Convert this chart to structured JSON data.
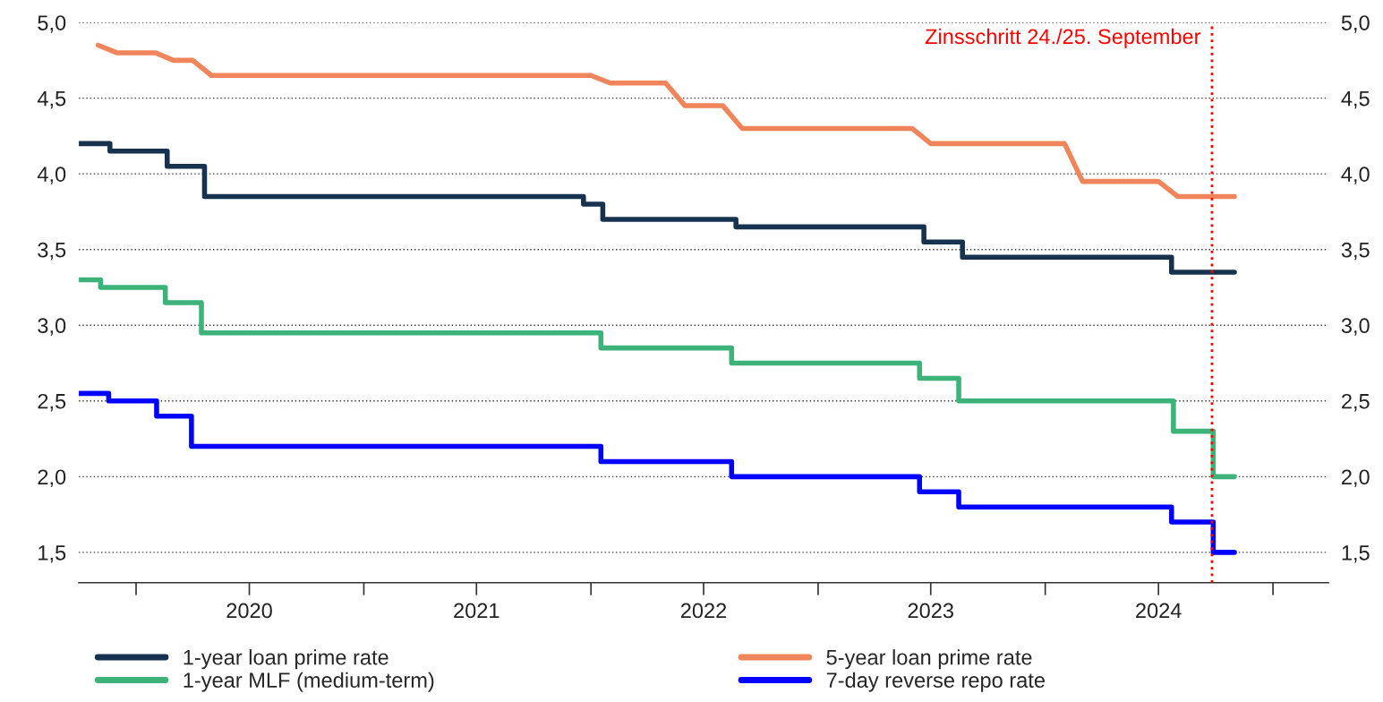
{
  "chart_data": {
    "type": "line",
    "xlim": [
      "2019-10-01",
      "2025-03-31"
    ],
    "xticks": [
      {
        "value": "2020-01-01",
        "label": null
      },
      {
        "value": "2020-07-01",
        "label": "2020"
      },
      {
        "value": "2021-01-01",
        "label": null
      },
      {
        "value": "2021-07-01",
        "label": "2021"
      },
      {
        "value": "2022-01-01",
        "label": null
      },
      {
        "value": "2022-07-01",
        "label": "2022"
      },
      {
        "value": "2023-01-01",
        "label": null
      },
      {
        "value": "2023-07-01",
        "label": "2023"
      },
      {
        "value": "2024-01-01",
        "label": null
      },
      {
        "value": "2024-07-01",
        "label": "2024"
      },
      {
        "value": "2025-01-01",
        "label": null
      }
    ],
    "ylim": [
      1.3,
      5.0
    ],
    "yticks": [
      {
        "value": 1.5,
        "label": "1,5"
      },
      {
        "value": 2.0,
        "label": "2,0"
      },
      {
        "value": 2.5,
        "label": "2,5"
      },
      {
        "value": 3.0,
        "label": "3,0"
      },
      {
        "value": 3.5,
        "label": "3,5"
      },
      {
        "value": 4.0,
        "label": "4,0"
      },
      {
        "value": 4.5,
        "label": "4,5"
      },
      {
        "value": 5.0,
        "label": "5,0"
      }
    ],
    "y2lim": [
      1.3,
      5.0
    ],
    "y2ticks": [
      {
        "value": 1.5,
        "label": "1,5"
      },
      {
        "value": 2.0,
        "label": "2,0"
      },
      {
        "value": 2.5,
        "label": "2,5"
      },
      {
        "value": 3.0,
        "label": "3,0"
      },
      {
        "value": 3.5,
        "label": "3,5"
      },
      {
        "value": 4.0,
        "label": "4,0"
      },
      {
        "value": 4.5,
        "label": "4,5"
      },
      {
        "value": 5.0,
        "label": "5,0"
      }
    ],
    "grid": "y",
    "legend": "bottom",
    "marker": "none",
    "line_style": "solid",
    "ref_lines": [
      {
        "axis": "x",
        "value": "2024-09-25",
        "label": "Zinsschritt 24./25. September",
        "color": "#ff0000",
        "line_style": "dotted"
      }
    ],
    "series": [
      {
        "name": "1-year loan prime rate",
        "type": "step",
        "color": "#17324f",
        "x": [
          "2019-10-01",
          "2019-11-20",
          "2020-02-20",
          "2020-04-20",
          "2021-12-20",
          "2022-01-20",
          "2022-08-22",
          "2023-06-20",
          "2023-08-21",
          "2024-07-22",
          "2024-10-31"
        ],
        "values": [
          4.2,
          4.15,
          4.05,
          3.85,
          3.8,
          3.7,
          3.65,
          3.55,
          3.45,
          3.35,
          3.35
        ]
      },
      {
        "name": "1-year MLF (medium-term)",
        "type": "step",
        "color": "#3db37a",
        "x": [
          "2019-10-01",
          "2019-11-05",
          "2020-02-17",
          "2020-04-15",
          "2022-01-17",
          "2022-08-15",
          "2023-06-13",
          "2023-08-15",
          "2024-07-25",
          "2024-09-27",
          "2024-10-31"
        ],
        "values": [
          3.3,
          3.25,
          3.15,
          2.95,
          2.85,
          2.75,
          2.65,
          2.5,
          2.3,
          2.0,
          2.0
        ]
      },
      {
        "name": "5-year loan prime rate",
        "color": "#f0845a",
        "x": [
          "2019-11-01",
          "2019-12-01",
          "2020-02-01",
          "2020-03-01",
          "2020-04-01",
          "2020-05-01",
          "2022-01-01",
          "2022-02-01",
          "2022-05-01",
          "2022-06-01",
          "2022-08-01",
          "2022-09-01",
          "2023-06-01",
          "2023-07-01",
          "2024-02-01",
          "2024-03-01",
          "2024-07-01",
          "2024-08-01",
          "2024-10-31"
        ],
        "values": [
          4.85,
          4.8,
          4.8,
          4.75,
          4.75,
          4.65,
          4.65,
          4.6,
          4.6,
          4.45,
          4.45,
          4.3,
          4.3,
          4.2,
          4.2,
          3.95,
          3.95,
          3.85,
          3.85
        ]
      },
      {
        "name": "7-day reverse repo rate",
        "type": "step",
        "color": "#0000ff",
        "x": [
          "2019-10-01",
          "2019-11-18",
          "2020-02-03",
          "2020-03-30",
          "2022-01-17",
          "2022-08-15",
          "2023-06-13",
          "2023-08-15",
          "2024-07-22",
          "2024-09-27",
          "2024-10-31"
        ],
        "values": [
          2.55,
          2.5,
          2.4,
          2.2,
          2.1,
          2.0,
          1.9,
          1.8,
          1.7,
          1.5,
          1.5
        ]
      }
    ]
  }
}
